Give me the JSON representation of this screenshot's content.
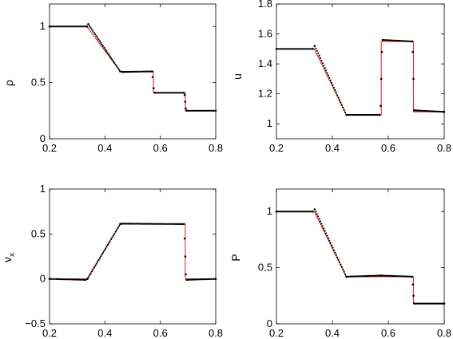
{
  "chart_data": [
    {
      "type": "line",
      "ylabel": "ρ",
      "xlim": [
        0.2,
        0.8
      ],
      "ylim": [
        0,
        1.2
      ],
      "xticks": [
        0.2,
        0.4,
        0.6,
        0.8
      ],
      "yticks": [
        0,
        0.5,
        1
      ],
      "xtick_labels": [
        "0.2",
        "0.4",
        "0.6",
        "0.8"
      ],
      "ytick_labels": [
        "0",
        "0.5",
        "1"
      ],
      "series": [
        {
          "style": "line",
          "color": "#e03030",
          "x": [
            0.2,
            0.335,
            0.455,
            0.575,
            0.575,
            0.69,
            0.69,
            0.8
          ],
          "y": [
            1.0,
            1.0,
            0.6,
            0.6,
            0.41,
            0.41,
            0.25,
            0.25
          ]
        },
        {
          "style": "dots",
          "color": "#000000",
          "x": [
            0.2,
            0.335,
            0.34,
            0.455,
            0.465,
            0.57,
            0.572,
            0.576,
            0.58,
            0.685,
            0.688,
            0.69,
            0.692,
            0.695,
            0.8
          ],
          "y": [
            1.0,
            1.0,
            1.02,
            0.6,
            0.595,
            0.6,
            0.55,
            0.45,
            0.41,
            0.41,
            0.39,
            0.33,
            0.27,
            0.25,
            0.25
          ]
        }
      ]
    },
    {
      "type": "line",
      "ylabel": "u",
      "xlim": [
        0.2,
        0.8
      ],
      "ylim": [
        0.9,
        1.8
      ],
      "xticks": [
        0.2,
        0.4,
        0.6,
        0.8
      ],
      "yticks": [
        1,
        1.2,
        1.4,
        1.6,
        1.8
      ],
      "xtick_labels": [
        "0.2",
        "0.4",
        "0.6",
        "0.8"
      ],
      "ytick_labels": [
        "1",
        "1.2",
        "1.4",
        "1.6",
        "1.8"
      ],
      "series": [
        {
          "style": "line",
          "color": "#e03030",
          "x": [
            0.2,
            0.335,
            0.45,
            0.575,
            0.575,
            0.69,
            0.69,
            0.8
          ],
          "y": [
            1.5,
            1.5,
            1.06,
            1.06,
            1.55,
            1.55,
            1.08,
            1.08
          ]
        },
        {
          "style": "dots",
          "color": "#000000",
          "x": [
            0.2,
            0.33,
            0.337,
            0.45,
            0.57,
            0.573,
            0.575,
            0.577,
            0.58,
            0.685,
            0.688,
            0.69,
            0.693,
            0.8
          ],
          "y": [
            1.5,
            1.5,
            1.52,
            1.06,
            1.06,
            1.12,
            1.3,
            1.48,
            1.56,
            1.55,
            1.48,
            1.3,
            1.09,
            1.08
          ]
        }
      ]
    },
    {
      "type": "line",
      "ylabel": "v",
      "ylabel_sub": "x",
      "xlim": [
        0.2,
        0.8
      ],
      "ylim": [
        -0.5,
        1
      ],
      "xticks": [
        0.2,
        0.4,
        0.6,
        0.8
      ],
      "yticks": [
        -0.5,
        0,
        0.5,
        1
      ],
      "xtick_labels": [
        "0.2",
        "0.4",
        "0.6",
        "0.8"
      ],
      "ytick_labels": [
        "−0.5",
        "0",
        "0.5",
        "1"
      ],
      "series": [
        {
          "style": "line",
          "color": "#e03030",
          "x": [
            0.2,
            0.335,
            0.455,
            0.69,
            0.69,
            0.8
          ],
          "y": [
            0.0,
            0.0,
            0.61,
            0.61,
            0.0,
            0.0
          ]
        },
        {
          "style": "dots",
          "color": "#000000",
          "x": [
            0.2,
            0.33,
            0.337,
            0.455,
            0.46,
            0.685,
            0.688,
            0.69,
            0.692,
            0.695,
            0.8
          ],
          "y": [
            0.0,
            -0.01,
            0.0,
            0.61,
            0.615,
            0.61,
            0.45,
            0.25,
            0.05,
            -0.01,
            0.0
          ]
        }
      ]
    },
    {
      "type": "line",
      "ylabel": "P",
      "xlim": [
        0.2,
        0.8
      ],
      "ylim": [
        0,
        1.2
      ],
      "xticks": [
        0.2,
        0.4,
        0.6,
        0.8
      ],
      "yticks": [
        0,
        0.5,
        1
      ],
      "xtick_labels": [
        "0.2",
        "0.4",
        "0.6",
        "0.8"
      ],
      "ytick_labels": [
        "0",
        "0.5",
        "1"
      ],
      "series": [
        {
          "style": "line",
          "color": "#e03030",
          "x": [
            0.2,
            0.335,
            0.45,
            0.69,
            0.69,
            0.8
          ],
          "y": [
            1.0,
            1.0,
            0.42,
            0.42,
            0.18,
            0.18
          ]
        },
        {
          "style": "dots",
          "color": "#000000",
          "x": [
            0.2,
            0.33,
            0.337,
            0.45,
            0.575,
            0.685,
            0.688,
            0.69,
            0.693,
            0.8
          ],
          "y": [
            1.0,
            1.0,
            1.02,
            0.42,
            0.43,
            0.42,
            0.35,
            0.25,
            0.18,
            0.18
          ]
        }
      ]
    }
  ]
}
